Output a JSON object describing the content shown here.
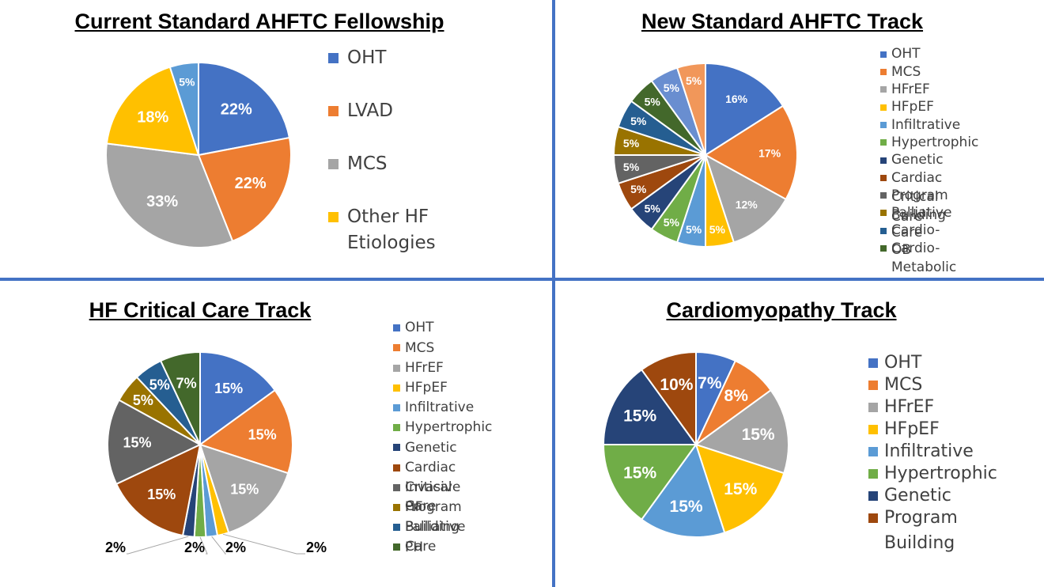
{
  "chart_data": [
    {
      "type": "pie",
      "title": "Current Standard AHFTC Fellowship",
      "categories": [
        "OHT",
        "LVAD",
        "MCS",
        "Other HF Etiologies",
        ""
      ],
      "values": [
        22,
        22,
        33,
        18,
        5
      ],
      "labels": [
        "22%",
        "22%",
        "33%",
        "18%",
        "5%"
      ],
      "colors": [
        "#4472C4",
        "#ED7D31",
        "#A5A5A5",
        "#FFC000",
        "#5B9BD5"
      ],
      "legend": [
        "OHT",
        "LVAD",
        "MCS",
        "Other HF\nEtiologies"
      ]
    },
    {
      "type": "pie",
      "title": "New Standard AHFTC Track",
      "categories": [
        "OHT",
        "MCS",
        "HFrEF",
        "HFpEF",
        "Infiltrative",
        "Hypertrophic",
        "Genetic",
        "Cardiac Critical Care",
        "Program Building",
        "Palliative Care",
        "Cardio-OB",
        "Cardio-Metabolic",
        "",
        ""
      ],
      "values": [
        16,
        17,
        12,
        5,
        5,
        5,
        5,
        5,
        5,
        5,
        5,
        5,
        5,
        5
      ],
      "labels": [
        "16%",
        "17%",
        "12%",
        "5%",
        "5%",
        "5%",
        "5%",
        "5%",
        "5%",
        "5%",
        "5%",
        "5%",
        "5%",
        "5%"
      ],
      "colors": [
        "#4472C4",
        "#ED7D31",
        "#A5A5A5",
        "#FFC000",
        "#5B9BD5",
        "#70AD47",
        "#264478",
        "#9E480E",
        "#636363",
        "#997300",
        "#255E91",
        "#43682B",
        "#698ED0",
        "#F1975A"
      ],
      "legend": [
        "OHT",
        "MCS",
        "HFrEF",
        "HFpEF",
        "Infiltrative",
        "Hypertrophic",
        "Genetic",
        "Cardiac Critical Care",
        "Program Building",
        "Palliative Care",
        "Cardio-OB",
        "Cardio-Metabolic"
      ]
    },
    {
      "type": "pie",
      "title": "HF Critical Care Track",
      "categories": [
        "OHT",
        "MCS",
        "HFrEF",
        "HFpEF",
        "Infiltrative",
        "Hypertrophic",
        "Genetic",
        "Cardiac Critical Care",
        "Invasive HF",
        "Program Building",
        "Palliative Care",
        "PH"
      ],
      "values": [
        15,
        15,
        15,
        2,
        2,
        2,
        2,
        15,
        15,
        5,
        5,
        7
      ],
      "labels": [
        "15%",
        "15%",
        "15%",
        "2%",
        "2%",
        "2%",
        "2%",
        "15%",
        "15%",
        "5%",
        "5%",
        "7%"
      ],
      "colors": [
        "#4472C4",
        "#ED7D31",
        "#A5A5A5",
        "#FFC000",
        "#5B9BD5",
        "#70AD47",
        "#264478",
        "#9E480E",
        "#636363",
        "#997300",
        "#255E91",
        "#43682B"
      ],
      "legend": [
        "OHT",
        "MCS",
        "HFrEF",
        "HFpEF",
        "Infiltrative",
        "Hypertrophic",
        "Genetic",
        "Cardiac Critical Care",
        "Invasive HF",
        "Program Building",
        "Palliative Care",
        "PH"
      ]
    },
    {
      "type": "pie",
      "title": "Cardiomyopathy Track",
      "categories": [
        "OHT",
        "MCS",
        "HFrEF",
        "HFpEF",
        "Infiltrative",
        "Hypertrophic",
        "Genetic",
        "Program Building"
      ],
      "values": [
        7,
        8,
        15,
        15,
        15,
        15,
        15,
        10
      ],
      "labels": [
        "7%",
        "8%",
        "15%",
        "15%",
        "15%",
        "15%",
        "15%",
        "10%"
      ],
      "colors": [
        "#4472C4",
        "#ED7D31",
        "#A5A5A5",
        "#FFC000",
        "#5B9BD5",
        "#70AD47",
        "#264478",
        "#9E480E"
      ],
      "legend": [
        "OHT",
        "MCS",
        "HFrEF",
        "HFpEF",
        "Infiltrative",
        "Hypertrophic",
        "Genetic",
        "Program Building"
      ]
    }
  ]
}
